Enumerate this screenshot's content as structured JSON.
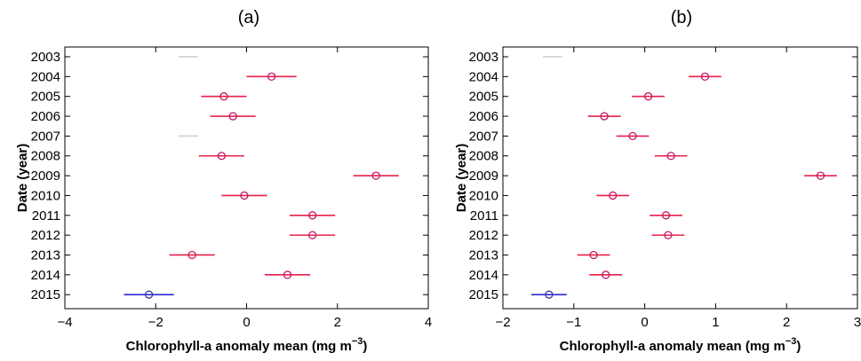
{
  "chart_data": [
    {
      "type": "scatter",
      "title": "(a)",
      "xlabel": "Chlorophyll-a anomaly mean",
      "xlabel_unit": "(mg m",
      "xlabel_unit_exp": "−3",
      "xlabel_unit_close": ")",
      "ylabel": "Date (year)",
      "xlim": [
        -4,
        4
      ],
      "xticks": [
        -4,
        -2,
        0,
        2,
        4
      ],
      "xtick_labels": [
        "−4",
        "−2",
        "0",
        "2",
        "4"
      ],
      "years": [
        "2003",
        "2004",
        "2005",
        "2006",
        "2007",
        "2008",
        "2009",
        "2010",
        "2011",
        "2012",
        "2013",
        "2014",
        "2015"
      ],
      "points": [
        {
          "year": "2003",
          "mean": null,
          "low": null,
          "high": null,
          "color": "faint"
        },
        {
          "year": "2004",
          "mean": 0.55,
          "low": 0.0,
          "high": 1.1,
          "color": "red"
        },
        {
          "year": "2005",
          "mean": -0.5,
          "low": -1.0,
          "high": 0.0,
          "color": "red"
        },
        {
          "year": "2006",
          "mean": -0.3,
          "low": -0.8,
          "high": 0.2,
          "color": "red"
        },
        {
          "year": "2007",
          "mean": null,
          "low": null,
          "high": null,
          "color": "faint"
        },
        {
          "year": "2008",
          "mean": -0.55,
          "low": -1.05,
          "high": -0.05,
          "color": "red"
        },
        {
          "year": "2009",
          "mean": 2.85,
          "low": 2.35,
          "high": 3.35,
          "color": "red"
        },
        {
          "year": "2010",
          "mean": -0.05,
          "low": -0.55,
          "high": 0.45,
          "color": "red"
        },
        {
          "year": "2011",
          "mean": 1.45,
          "low": 0.95,
          "high": 1.95,
          "color": "red"
        },
        {
          "year": "2012",
          "mean": 1.45,
          "low": 0.95,
          "high": 1.95,
          "color": "red"
        },
        {
          "year": "2013",
          "mean": -1.2,
          "low": -1.7,
          "high": -0.7,
          "color": "red"
        },
        {
          "year": "2014",
          "mean": 0.9,
          "low": 0.4,
          "high": 1.4,
          "color": "red"
        },
        {
          "year": "2015",
          "mean": -2.15,
          "low": -2.7,
          "high": -1.6,
          "color": "blue"
        }
      ]
    },
    {
      "type": "scatter",
      "title": "(b)",
      "xlabel": "Chlorophyll-a anomaly mean",
      "xlabel_unit": "(mg m",
      "xlabel_unit_exp": "−3",
      "xlabel_unit_close": ")",
      "ylabel": "Date (year)",
      "xlim": [
        -2,
        3
      ],
      "xticks": [
        -2,
        -1,
        0,
        1,
        2,
        3
      ],
      "xtick_labels": [
        "−2",
        "−1",
        "0",
        "1",
        "2",
        "3"
      ],
      "years": [
        "2003",
        "2004",
        "2005",
        "2006",
        "2007",
        "2008",
        "2009",
        "2010",
        "2011",
        "2012",
        "2013",
        "2014",
        "2015"
      ],
      "points": [
        {
          "year": "2003",
          "mean": null,
          "low": null,
          "high": null,
          "color": "faint"
        },
        {
          "year": "2004",
          "mean": 0.85,
          "low": 0.62,
          "high": 1.08,
          "color": "red"
        },
        {
          "year": "2005",
          "mean": 0.05,
          "low": -0.18,
          "high": 0.28,
          "color": "red"
        },
        {
          "year": "2006",
          "mean": -0.57,
          "low": -0.8,
          "high": -0.34,
          "color": "red"
        },
        {
          "year": "2007",
          "mean": -0.17,
          "low": -0.4,
          "high": 0.06,
          "color": "red"
        },
        {
          "year": "2008",
          "mean": 0.37,
          "low": 0.14,
          "high": 0.6,
          "color": "red"
        },
        {
          "year": "2009",
          "mean": 2.48,
          "low": 2.25,
          "high": 2.71,
          "color": "red"
        },
        {
          "year": "2010",
          "mean": -0.45,
          "low": -0.68,
          "high": -0.22,
          "color": "red"
        },
        {
          "year": "2011",
          "mean": 0.3,
          "low": 0.07,
          "high": 0.53,
          "color": "red"
        },
        {
          "year": "2012",
          "mean": 0.33,
          "low": 0.1,
          "high": 0.56,
          "color": "red"
        },
        {
          "year": "2013",
          "mean": -0.72,
          "low": -0.95,
          "high": -0.49,
          "color": "red"
        },
        {
          "year": "2014",
          "mean": -0.55,
          "low": -0.78,
          "high": -0.32,
          "color": "red"
        },
        {
          "year": "2015",
          "mean": -1.35,
          "low": -1.6,
          "high": -1.1,
          "color": "blue"
        }
      ]
    }
  ],
  "colors": {
    "red": "#e8204a",
    "red_marker": "#c2186a",
    "blue": "#2a2ad8",
    "blue_marker": "#3a3aa8",
    "faint": "#d8d8d8"
  }
}
